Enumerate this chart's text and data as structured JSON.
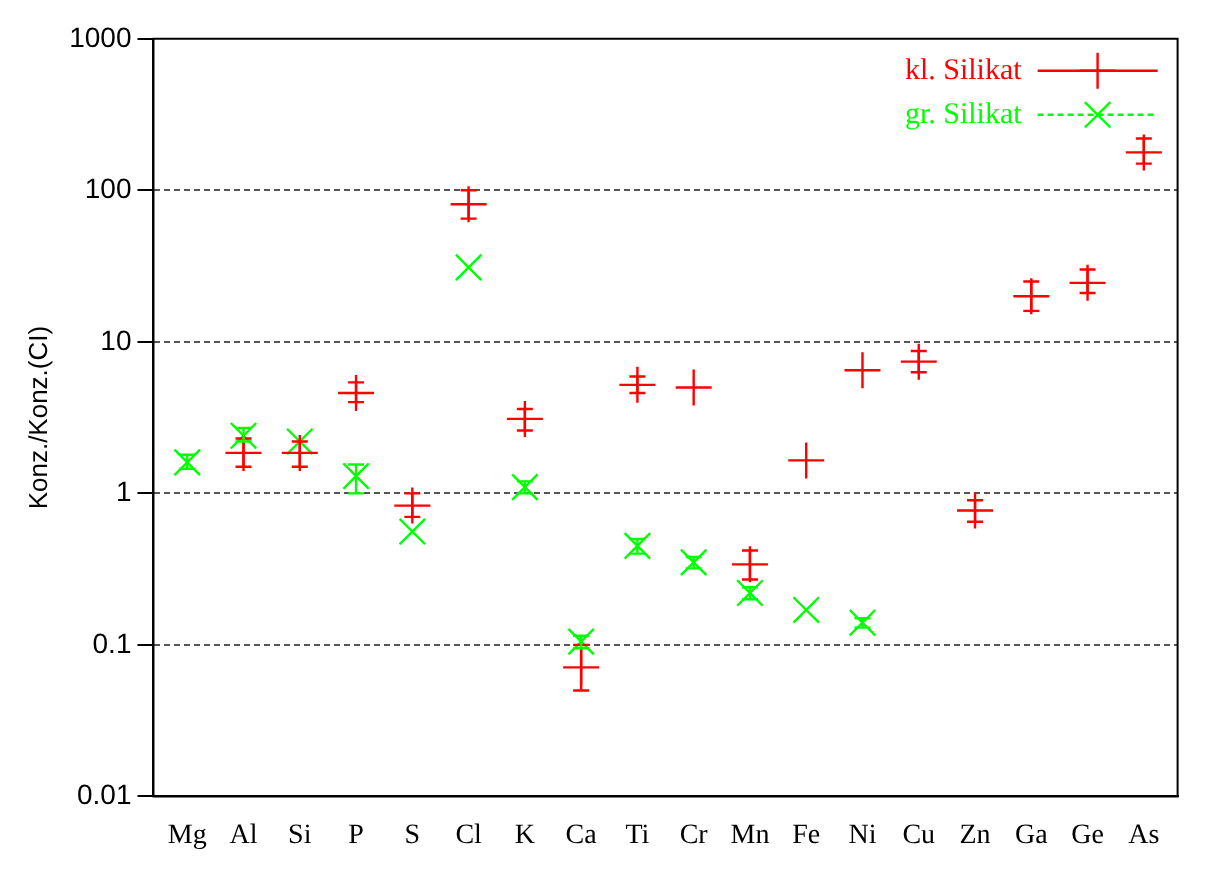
{
  "chart_data": {
    "type": "scatter",
    "ylabel": "Konz./Konz.(CI)",
    "categories": [
      "Mg",
      "Al",
      "Si",
      "P",
      "S",
      "Cl",
      "K",
      "Ca",
      "Ti",
      "Cr",
      "Mn",
      "Fe",
      "Ni",
      "Cu",
      "Zn",
      "Ga",
      "Ge",
      "As"
    ],
    "series": [
      {
        "name": "kl. Silikat",
        "color": "#ff0000",
        "values": [
          null,
          1.85,
          1.85,
          4.6,
          0.83,
          81,
          3.1,
          0.071,
          5.2,
          5.0,
          0.34,
          1.65,
          6.5,
          7.4,
          0.77,
          20,
          24.5,
          178
        ],
        "errors": [
          null,
          [
            1.5,
            2.3
          ],
          [
            1.5,
            2.2
          ],
          [
            4.0,
            5.4
          ],
          [
            0.7,
            1.0
          ],
          [
            65,
            100
          ],
          [
            2.6,
            3.6
          ],
          [
            0.05,
            0.1
          ],
          [
            4.6,
            5.9
          ],
          null,
          [
            0.27,
            0.42
          ],
          null,
          null,
          [
            6.3,
            8.7
          ],
          [
            0.65,
            0.9
          ],
          [
            16,
            25
          ],
          [
            21,
            30
          ],
          [
            150,
            220
          ]
        ]
      },
      {
        "name": "gr. Silikat",
        "color": "#00ff00",
        "values": [
          1.6,
          2.4,
          2.2,
          1.3,
          0.56,
          31,
          1.1,
          0.105,
          0.45,
          0.35,
          0.22,
          0.17,
          0.14,
          null,
          null,
          null,
          null,
          null
        ],
        "errors": [
          [
            1.45,
            1.8
          ],
          [
            2.2,
            2.7
          ],
          null,
          [
            1.0,
            1.55
          ],
          null,
          null,
          [
            1.0,
            1.2
          ],
          [
            0.095,
            0.115
          ],
          [
            0.4,
            0.5
          ],
          [
            0.32,
            0.38
          ],
          [
            0.2,
            0.24
          ],
          null,
          [
            0.13,
            0.15
          ],
          null,
          null,
          null,
          null,
          null
        ]
      }
    ],
    "log": "y",
    "ylim": [
      0.01,
      1000
    ],
    "yticks": [
      0.01,
      0.1,
      1,
      10,
      100,
      1000
    ],
    "grid": "y",
    "legend": "top right",
    "marker": "cross"
  }
}
